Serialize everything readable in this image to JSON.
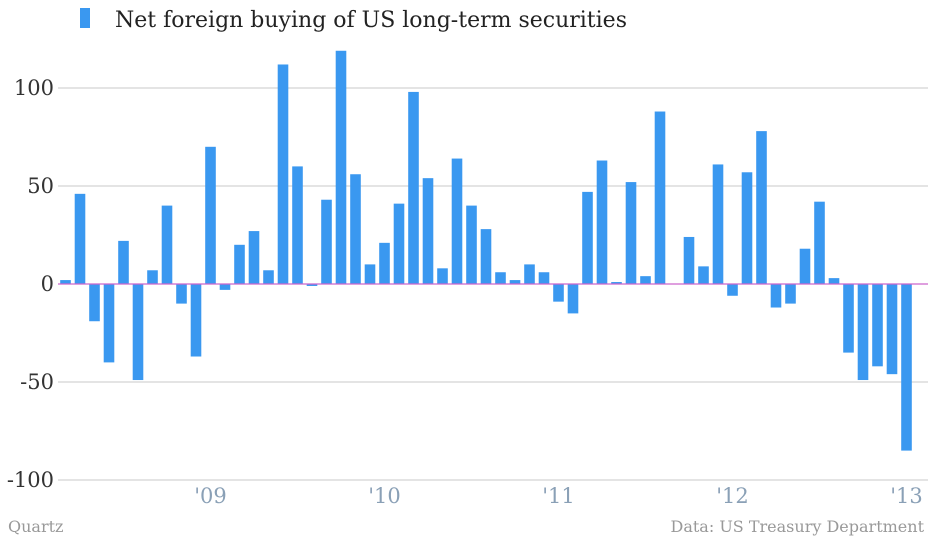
{
  "chart_data": {
    "type": "bar",
    "legend": [
      "Net foreign buying of US long-term securities"
    ],
    "series": [
      {
        "name": "Net foreign buying of US long-term securities",
        "values": [
          2,
          46,
          -19,
          -40,
          22,
          -49,
          7,
          40,
          -10,
          -37,
          70,
          -3,
          20,
          27,
          7,
          112,
          60,
          -1,
          43,
          119,
          56,
          10,
          21,
          41,
          98,
          54,
          8,
          64,
          40,
          28,
          6,
          2,
          10,
          6,
          -9,
          -15,
          47,
          63,
          1,
          52,
          4,
          88,
          0,
          24,
          9,
          61,
          -6,
          57,
          78,
          -12,
          -10,
          18,
          42,
          3,
          -35,
          -49,
          -42,
          -46,
          -85
        ]
      }
    ],
    "yticks": [
      "100",
      "50",
      "0",
      "-50",
      "-100"
    ],
    "ylim": [
      -100,
      120
    ],
    "xticks": [
      "'09",
      "'10",
      "'11",
      "'12",
      "'13"
    ],
    "grid": true,
    "legend_position": "top-left",
    "colors": {
      "bar": "#3a98f0",
      "zero_line": "#cc66cc",
      "grid": "#c8c8c8"
    }
  },
  "footer": {
    "source_left": "Quartz",
    "source_right": "Data: US Treasury Department"
  }
}
